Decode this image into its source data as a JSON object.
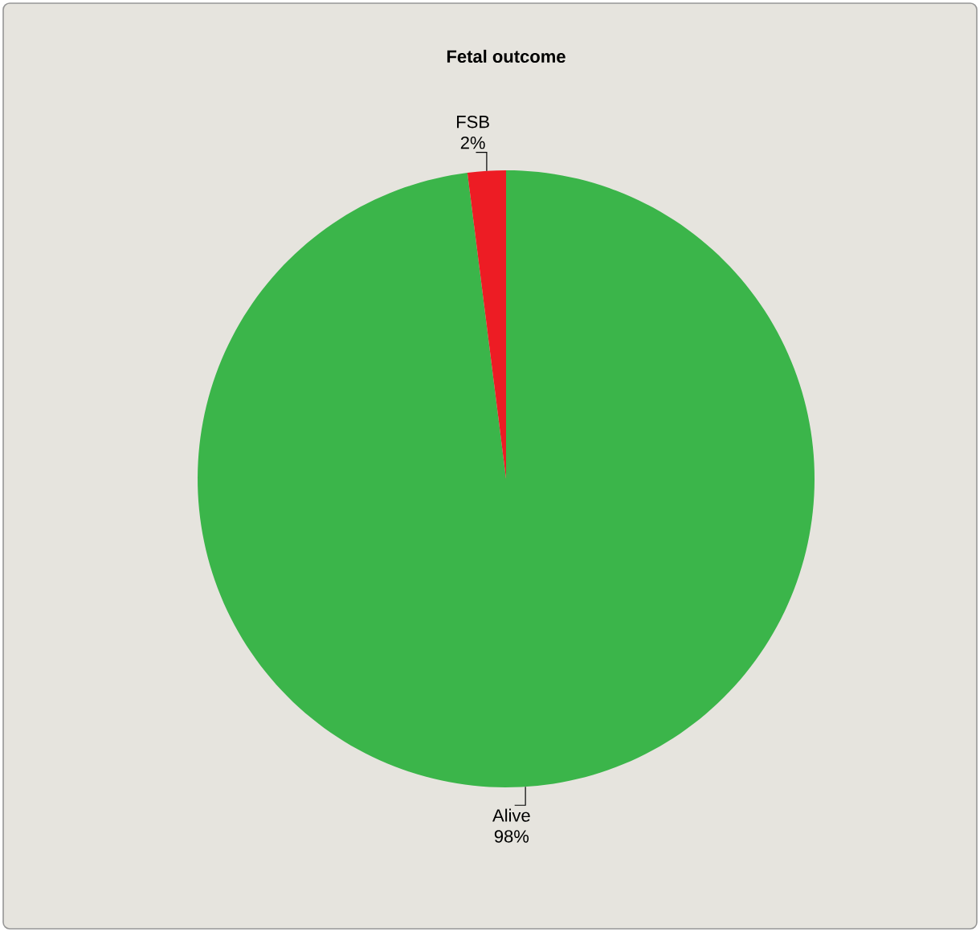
{
  "chart_data": {
    "type": "pie",
    "title": "Fetal outcome",
    "categories": [
      "Alive",
      "FSB"
    ],
    "values": [
      98,
      2
    ],
    "colors": [
      "#3bb54a",
      "#ed1c24"
    ],
    "value_labels": [
      "98%",
      "2%"
    ]
  }
}
